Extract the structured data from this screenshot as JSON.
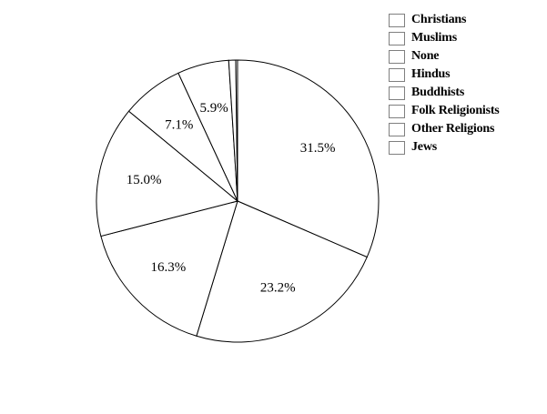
{
  "chart_data": {
    "type": "pie",
    "title": "",
    "legend_position": "top-right",
    "start_angle": "12 o'clock, clockwise",
    "slices": [
      {
        "label": "Christians",
        "value": 31.5,
        "display": "31.5%"
      },
      {
        "label": "Muslims",
        "value": 23.2,
        "display": "23.2%"
      },
      {
        "label": "None",
        "value": 16.3,
        "display": "16.3%"
      },
      {
        "label": "Hindus",
        "value": 15.0,
        "display": "15.0%"
      },
      {
        "label": "Buddhists",
        "value": 7.1,
        "display": "7.1%"
      },
      {
        "label": "Folk Religionists",
        "value": 5.9,
        "display": "5.9%"
      },
      {
        "label": "Other Religions",
        "value": 0.8,
        "display": ""
      },
      {
        "label": "Jews",
        "value": 0.2,
        "display": ""
      }
    ],
    "colors": {
      "slice_fill": "#ffffff",
      "slice_stroke": "#000000",
      "legend_swatch_border": "#7f7f7f"
    }
  }
}
